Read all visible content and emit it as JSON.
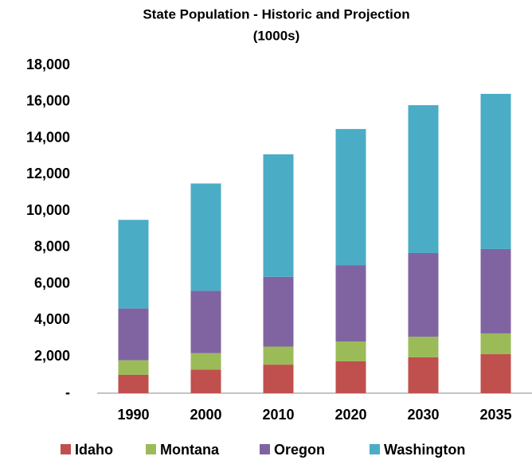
{
  "chart_data": {
    "type": "stacked-bar",
    "title": "State Population - Historic and Projection",
    "subtitle": "(1000s)",
    "categories": [
      "1990",
      "2000",
      "2010",
      "2020",
      "2030",
      "2035"
    ],
    "series": [
      {
        "name": "Idaho",
        "color": "#c0504d",
        "values": [
          1007,
          1294,
          1568,
          1750,
          1970,
          2140
        ]
      },
      {
        "name": "Montana",
        "color": "#9bbb59",
        "values": [
          799,
          902,
          989,
          1090,
          1130,
          1140
        ]
      },
      {
        "name": "Oregon",
        "color": "#8064a2",
        "values": [
          2842,
          3421,
          3831,
          4190,
          4590,
          4630
        ]
      },
      {
        "name": "Washington",
        "color": "#4bacc6",
        "values": [
          4867,
          5894,
          6725,
          7470,
          8120,
          8520
        ]
      }
    ],
    "ylim": [
      0,
      18000
    ],
    "yticks": [
      {
        "value": 0,
        "label": "-"
      },
      {
        "value": 2000,
        "label": "2,000"
      },
      {
        "value": 4000,
        "label": "4,000"
      },
      {
        "value": 6000,
        "label": "6,000"
      },
      {
        "value": 8000,
        "label": "8,000"
      },
      {
        "value": 10000,
        "label": "10,000"
      },
      {
        "value": 12000,
        "label": "12,000"
      },
      {
        "value": 14000,
        "label": "14,000"
      },
      {
        "value": 16000,
        "label": "16,000"
      },
      {
        "value": 18000,
        "label": "18,000"
      }
    ],
    "grid": false,
    "legend": "bottom"
  }
}
